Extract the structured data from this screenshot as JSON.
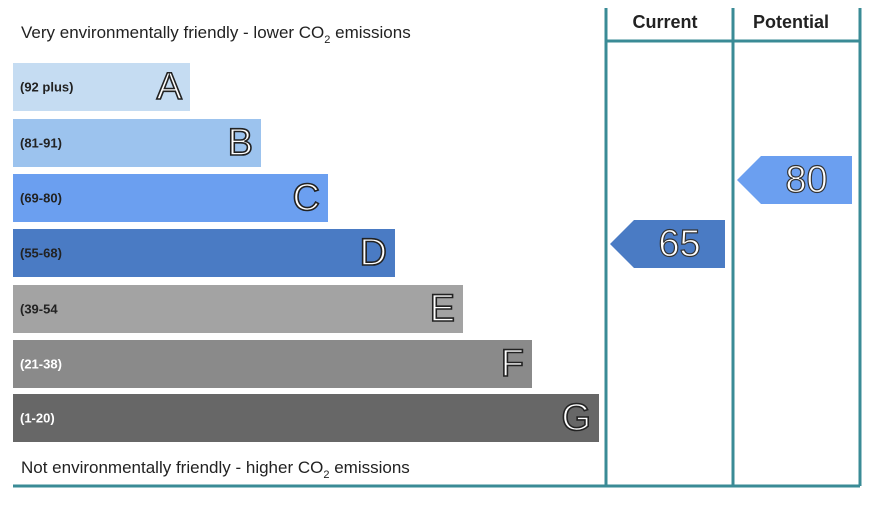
{
  "top_label": {
    "text": "Very environmentally friendly - lower CO",
    "sub": "2",
    "after": " emissions"
  },
  "bottom_label": {
    "text": "Not environmentally friendly - higher CO",
    "sub": "2",
    "after": " emissions"
  },
  "columns": [
    "Current",
    "Potential"
  ],
  "bands": [
    {
      "range": "(92 plus)",
      "letter": "A",
      "color": "#c5dcf2"
    },
    {
      "range": "(81-91)",
      "letter": "B",
      "color": "#9cc3ee"
    },
    {
      "range": "(69-80)",
      "letter": "C",
      "color": "#6b9ff0"
    },
    {
      "range": "(55-68)",
      "letter": "D",
      "color": "#4a7bc4"
    },
    {
      "range": "(39-54",
      "letter": "E",
      "color": "#a3a3a3"
    },
    {
      "range": "(21-38)",
      "letter": "F",
      "color": "#8a8a8a"
    },
    {
      "range": "(1-20)",
      "letter": "G",
      "color": "#676767"
    }
  ],
  "current": {
    "value": "65",
    "color": "#4a7bc4"
  },
  "potential": {
    "value": "80",
    "color": "#6b9ff0"
  }
}
